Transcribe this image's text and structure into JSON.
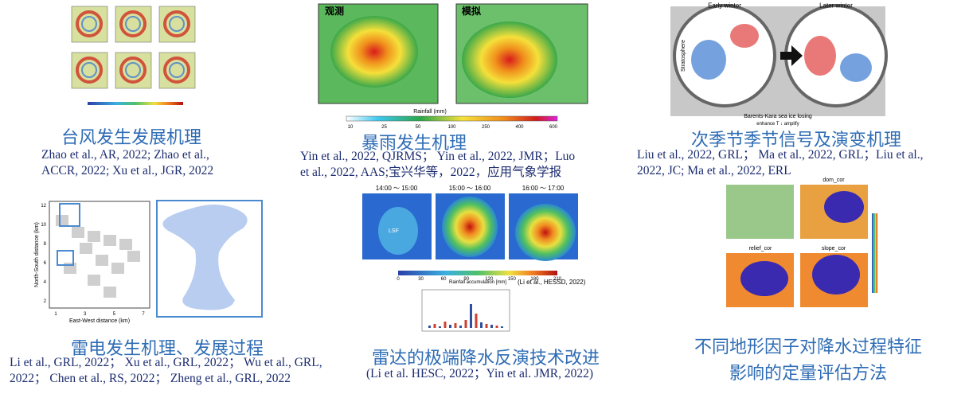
{
  "panels": [
    {
      "title": [
        "台风发生发展机理"
      ],
      "refs": [
        "Zhao et al., AR, 2022; Zhao et al.,",
        "ACCR, 2022; Xu et al., JGR, 2022"
      ]
    },
    {
      "title": [
        "暴雨发生机理"
      ],
      "refs": [
        "Yin et al., 2022, QJRMS； Yin et al., 2022, JMR；Luo",
        "et al., 2022, AAS;宝兴华等，2022，应用气象学报"
      ],
      "figure": {
        "left_label": "观测",
        "right_label": "模拟",
        "colorbar_label": "Rainfall (mm)",
        "colorbar_ticks": [
          "10",
          "25",
          "50",
          "100",
          "250",
          "400",
          "600"
        ]
      }
    },
    {
      "title": [
        "次季节季节信号及演变机理"
      ],
      "refs": [
        "Liu et al., 2022, GRL； Ma et al., 2022, GRL；Liu et al.,",
        "2022, JC; Ma et al., 2022, ERL"
      ],
      "figure": {
        "left_title": "Early winter",
        "right_title": "Later winter",
        "side_label": "Stratosphere",
        "caption": "Barents-Kara sea ice losing",
        "caption2": "enhance T ↓ amplify"
      }
    },
    {
      "title": [
        "雷电发生机理、发展过程"
      ],
      "refs": [
        "Li et al., GRL, 2022； Xu et al., GRL, 2022； Wu et al., GRL,",
        "2022； Chen et al., RS, 2022； Zheng et al., GRL, 2022"
      ],
      "figure": {
        "y_label": "North-South distance (km)",
        "x_label": "East-West distance (km)",
        "xticks": [
          "1",
          "3",
          "5",
          "7"
        ],
        "yticks": [
          "2",
          "4",
          "6",
          "8",
          "10",
          "12"
        ]
      }
    },
    {
      "title": [
        "雷达的极端降水反演技术改进"
      ],
      "refs": [
        "(Li et al. HESC, 2022；Yin et al. JMR, 2022)"
      ],
      "figure": {
        "times": [
          "14:00 ～ 15:00",
          "15:00 ～ 16:00",
          "16:00 ～ 17:00"
        ],
        "colorbar_label": "Rainfall accumulation [mm]",
        "colorbar_ticks": [
          "0",
          "30",
          "60",
          "90",
          "120",
          "150",
          "180",
          "210"
        ],
        "source": "(Li et al., HESSD, 2022)",
        "lsf": "LSF"
      }
    },
    {
      "title": [
        "不同地形因子对降水过程特征",
        "影响的定量评估方法"
      ],
      "figure": {
        "labels": [
          "dom_cor",
          "relief_cor",
          "slope_cor"
        ]
      }
    }
  ]
}
